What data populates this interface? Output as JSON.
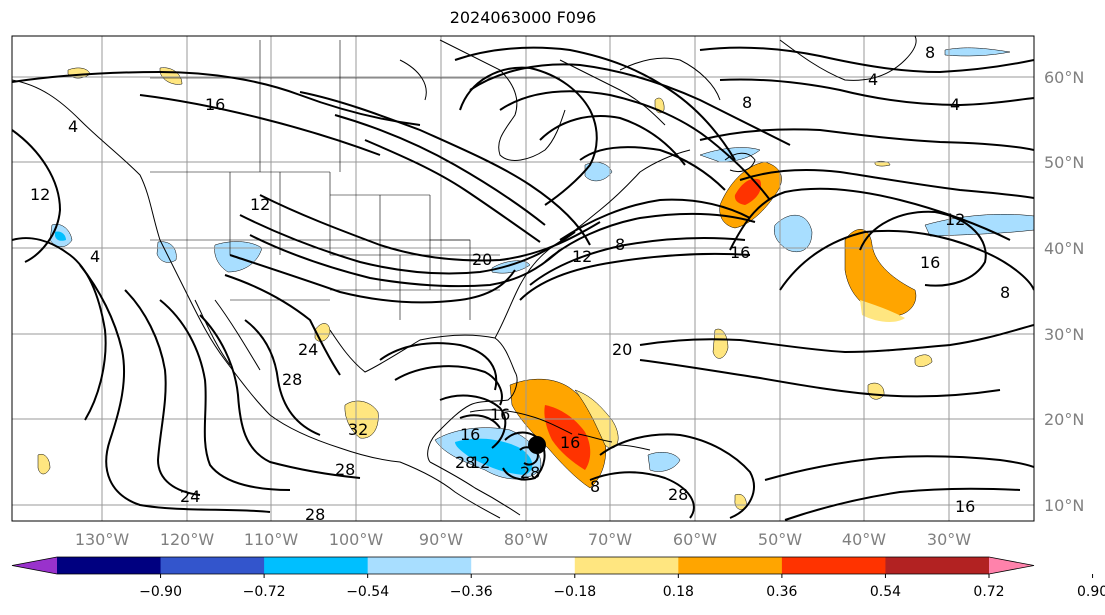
{
  "title": "2024063000 F096",
  "lon_labels": [
    "130°W",
    "120°W",
    "110°W",
    "100°W",
    "90°W",
    "80°W",
    "70°W",
    "60°W",
    "50°W",
    "40°W",
    "30°W"
  ],
  "lat_labels": [
    "60°N",
    "50°N",
    "40°N",
    "30°N",
    "20°N",
    "10°N"
  ],
  "contour_labels": [
    "16",
    "4",
    "12",
    "4",
    "12",
    "24",
    "28",
    "24",
    "32",
    "28",
    "16",
    "28",
    "28",
    "20",
    "12",
    "16",
    "20",
    "28",
    "28",
    "8",
    "8",
    "8",
    "16",
    "12",
    "16",
    "8",
    "4",
    "4",
    "12",
    "8",
    "16",
    "16"
  ],
  "colorbar": {
    "ticks": [
      "−0.90",
      "−0.72",
      "−0.54",
      "−0.36",
      "−0.18",
      "0.18",
      "0.36",
      "0.54",
      "0.72",
      "0.90"
    ],
    "colors": [
      "#9932CC",
      "#000080",
      "#3355CC",
      "#00BFFF",
      "#A8DEFF",
      "#FFFFFF",
      "#FFE680",
      "#FFA500",
      "#FF3300",
      "#B22222",
      "#FF82AB"
    ],
    "under_color": "#9932CC",
    "over_color": "#FF82AB"
  },
  "colors": {
    "grid": "#999999",
    "contour": "#000000",
    "coast": "#000000"
  },
  "marker": "storm-center"
}
